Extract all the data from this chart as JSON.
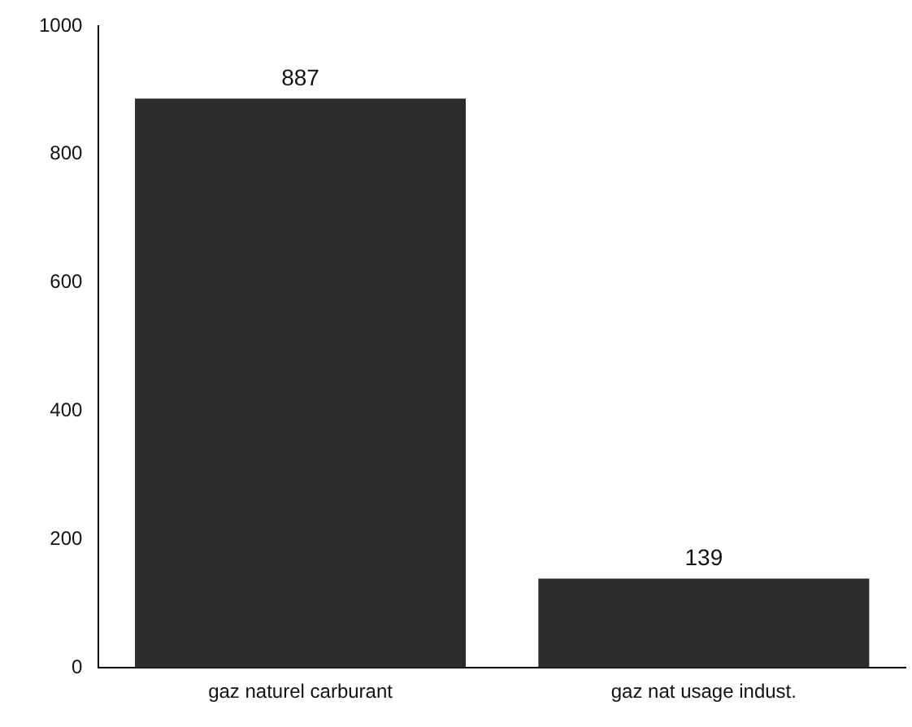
{
  "chart_data": {
    "type": "bar",
    "categories": [
      "gaz naturel carburant",
      "gaz nat usage indust."
    ],
    "values": [
      887,
      139
    ],
    "color": "#2b2b2b",
    "ylim": [
      0,
      1000
    ],
    "yticks": [
      0,
      200,
      400,
      600,
      800,
      1000
    ],
    "grid": false,
    "data_labels": true
  }
}
